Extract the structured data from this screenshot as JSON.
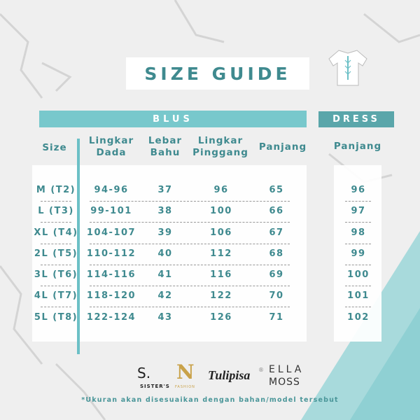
{
  "title": "SIZE GUIDE",
  "colors": {
    "accent": "#78c8cc",
    "dress_bar": "#5aa6aa",
    "text": "#3f8a8f"
  },
  "icons": {
    "top_right": "shirt-icon"
  },
  "blus": {
    "label": "BLUS",
    "headers": [
      [
        "Size"
      ],
      [
        "Lingkar",
        "Dada"
      ],
      [
        "Lebar",
        "Bahu"
      ],
      [
        "Lingkar",
        "Pinggang"
      ],
      [
        "Panjang"
      ]
    ],
    "rows": [
      [
        "M (T2)",
        "94-96",
        "37",
        "96",
        "65"
      ],
      [
        "L (T3)",
        "99-101",
        "38",
        "100",
        "66"
      ],
      [
        "XL (T4)",
        "104-107",
        "39",
        "106",
        "67"
      ],
      [
        "2L (T5)",
        "110-112",
        "40",
        "112",
        "68"
      ],
      [
        "3L (T6)",
        "114-116",
        "41",
        "116",
        "69"
      ],
      [
        "4L (T7)",
        "118-120",
        "42",
        "122",
        "70"
      ],
      [
        "5L (T8)",
        "122-124",
        "43",
        "126",
        "71"
      ]
    ]
  },
  "dress": {
    "label": "DRESS",
    "header": "Panjang",
    "values": [
      "96",
      "97",
      "98",
      "99",
      "100",
      "101",
      "102"
    ]
  },
  "logos": [
    "S.",
    "SISTER'S",
    "N",
    "FASHION",
    "Tulipisa",
    "®",
    "ELLA",
    "MOSS"
  ],
  "note": "*Ukuran akan disesuaikan dengan bahan/model tersebut"
}
